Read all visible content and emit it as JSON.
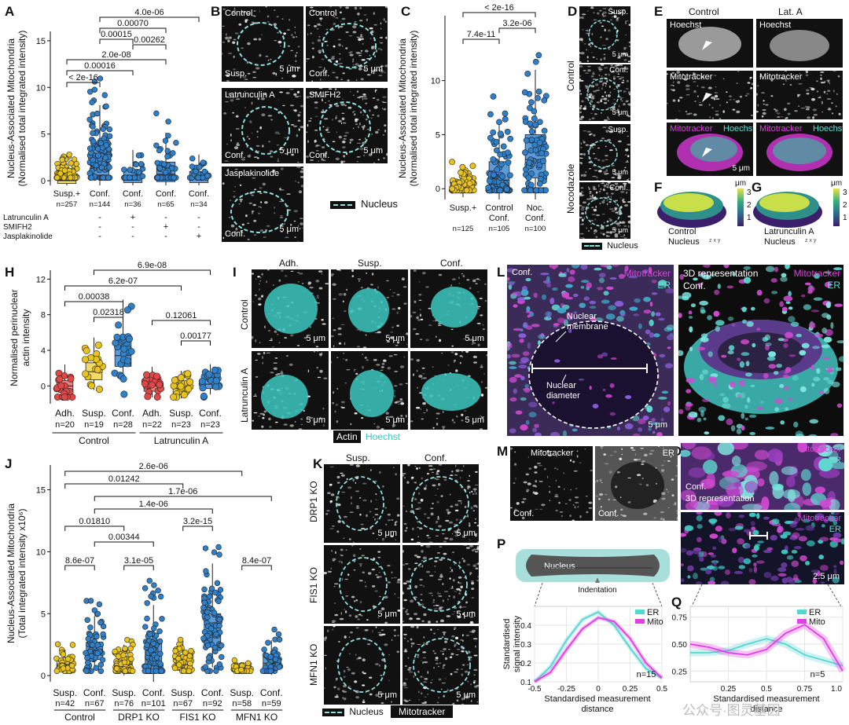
{
  "panels": {
    "A": {
      "label": "A",
      "ylabel": "Nucleus-Associated Mitochondria",
      "ylabel2": "(Normalised total integrated intensity)",
      "groups": [
        "Susp.+",
        "Conf.",
        "Conf.",
        "Conf.",
        "Conf."
      ],
      "ns": [
        "n=257",
        "n=144",
        "n=36",
        "n=65",
        "n=34"
      ],
      "treatments": [
        {
          "name": "Latrunculin A",
          "marks": [
            "",
            "-",
            "+",
            "-",
            "-"
          ]
        },
        {
          "name": "SMIFH2",
          "marks": [
            "",
            "-",
            "-",
            "+",
            "-"
          ]
        },
        {
          "name": "Jasplakinolide",
          "marks": [
            "",
            "-",
            "-",
            "-",
            "+"
          ]
        }
      ],
      "pvals": [
        "4.0e-06",
        "0.00070",
        "0.00015",
        "0.00262",
        "2.0e-08",
        "0.00016",
        "< 2e-16"
      ]
    },
    "B": {
      "label": "B",
      "tiles": [
        {
          "top": "Control",
          "bottom": "Susp.",
          "scale": "5 μm"
        },
        {
          "top": "Control",
          "bottom": "Conf.",
          "scale": "5 μm"
        },
        {
          "top": "Latrunculin A",
          "bottom": "Conf.",
          "scale": "5 μm"
        },
        {
          "top": "SMIFH2",
          "bottom": "Conf.",
          "scale": "5 μm"
        },
        {
          "top": "Jasplakinolide",
          "bottom": "Conf.",
          "scale": "5 μm"
        }
      ],
      "legend": "Nucleus"
    },
    "C": {
      "label": "C",
      "ylabel": "Nucleus-Associated Mitochondria",
      "ylabel2": "(Normalised total integrated intensity)",
      "groups": [
        "Susp.+",
        "Control\nConf.",
        "Noc.\nConf."
      ],
      "ns": [
        "n=125",
        "n=105",
        "n=100"
      ],
      "pvals": [
        "< 2e-16",
        "3.2e-06",
        "7.4e-11"
      ]
    },
    "D": {
      "label": "D",
      "rows": [
        "Control",
        "Nocodazole"
      ],
      "tiles": [
        "Susp.",
        "Conf.",
        "Susp.",
        "Conf."
      ],
      "scale": "5 μm",
      "legend": "Nucleus"
    },
    "E": {
      "label": "E",
      "cols": [
        "Control",
        "Lat. A"
      ],
      "hoechst": "Hoechst",
      "mitotracker": "Mitotracker",
      "scale": "5 μm"
    },
    "F": {
      "label": "F",
      "title": "Control",
      "title2": "Nucleus",
      "unit": "μm",
      "ticks": [
        "3",
        "2",
        "1"
      ]
    },
    "G": {
      "label": "G",
      "title": "Latrunculin A",
      "title2": "Nucleus",
      "unit": "μm",
      "ticks": [
        "3",
        "2",
        "1"
      ]
    },
    "H": {
      "label": "H",
      "ylabel": "Normalised perinuclear",
      "ylabel2": "actin intensity",
      "groups": [
        "Adh.",
        "Susp.",
        "Conf.",
        "Adh.",
        "Susp.",
        "Conf."
      ],
      "ns": [
        "n=20",
        "n=19",
        "n=28",
        "n=22",
        "n=23",
        "n=23"
      ],
      "conditions": [
        "Control",
        "Latrunculin A"
      ],
      "pvals": [
        "6.9e-08",
        "6.2e-07",
        "0.00038",
        "0.02318",
        "0.12061",
        "0.00177"
      ]
    },
    "I": {
      "label": "I",
      "cols": [
        "Adh.",
        "Susp.",
        "Conf."
      ],
      "rows": [
        "Control",
        "Latrunculin A"
      ],
      "scale": "5 μm",
      "legend1": "Actin",
      "legend2": "Hoechst"
    },
    "J": {
      "label": "J",
      "ylabel": "Nucleus-Associated Mitochondria",
      "ylabel2": "(Total integrated intensity x10⁶)",
      "groups": [
        "Susp.",
        "Conf.",
        "Susp.",
        "Conf.",
        "Susp.",
        "Conf.",
        "Susp.",
        "Conf."
      ],
      "ns": [
        "n=42",
        "n=67",
        "n=76",
        "n=101",
        "n=67",
        "n=92",
        "n=58",
        "n=59"
      ],
      "conditions": [
        "Control",
        "DRP1 KO",
        "FIS1 KO",
        "MFN1 KO"
      ],
      "pvals": [
        "2.6e-06",
        "0.01242",
        "1.7e-06",
        "1.4e-06",
        "0.01810",
        "3.2e-15",
        "0.00344",
        "8.6e-07",
        "3.1e-05",
        "8.4e-07"
      ]
    },
    "K": {
      "label": "K",
      "cols": [
        "Susp.",
        "Conf."
      ],
      "rows": [
        "DRP1 KO",
        "FIS1 KO",
        "MFN1 KO"
      ],
      "scale": "5 μm",
      "legend1": "Nucleus",
      "legend2": "Mitotracker"
    },
    "L": {
      "label": "L",
      "tl": "Conf.",
      "mito": "Mitotracker",
      "er": "ER",
      "membrane": "Nuclear\nmembrane",
      "diameter": "Nuclear\ndiameter",
      "scale": "5 μm",
      "right_title": "3D representation",
      "right_sub": "Conf."
    },
    "M": {
      "label": "M",
      "name": "Mitotracker",
      "sub": "Conf."
    },
    "N": {
      "label": "N",
      "name": "ER",
      "sub": "Conf."
    },
    "O": {
      "label": "O",
      "mito": "Mitotracker",
      "er": "ER",
      "top_sub": "Conf.",
      "top_sub2": "3D representation",
      "scale": "2.5 μm"
    },
    "P": {
      "label": "P",
      "nucleus": "Nucleus",
      "indentation": "Indentation",
      "ylabel": "Standardised",
      "ylabel2": "signal intensity",
      "xlabel": "Standardised measurement",
      "xlabel2": "distance",
      "n": "n=15",
      "legend": [
        "ER",
        "Mito"
      ],
      "xticks": [
        "-0.5",
        "-0.25",
        "0",
        "0.25",
        "0.5"
      ],
      "yticks": [
        "0.4",
        "0.3",
        "0.2",
        "0.1"
      ]
    },
    "Q": {
      "label": "Q",
      "xlabel": "Standardised measurement",
      "xlabel2": "distance",
      "n": "n=5",
      "legend": [
        "ER",
        "Mito"
      ],
      "xticks": [
        "0.25",
        "0.5",
        "0.75",
        "1.0"
      ],
      "yticks": [
        "0.75",
        "0.50",
        "0.25"
      ]
    }
  },
  "watermark": "公众号·图灵基因",
  "chart_data": [
    {
      "panel": "A",
      "type": "box",
      "ylim": [
        -0.5,
        16
      ],
      "yticks": [
        0,
        5,
        10,
        15
      ],
      "categories": [
        "Susp.+",
        "Conf.",
        "Conf.",
        "Conf.",
        "Conf."
      ],
      "series": [
        {
          "values_median": [
            0.0,
            1.9,
            0.3,
            0.7,
            0.3
          ],
          "q1": [
            -0.3,
            0.6,
            -0.2,
            -0.1,
            -0.2
          ],
          "q3": [
            0.6,
            3.6,
            1.2,
            2.0,
            1.0
          ]
        }
      ]
    },
    {
      "panel": "C",
      "type": "box",
      "ylim": [
        -1,
        16
      ],
      "yticks": [
        0,
        5,
        10
      ],
      "categories": [
        "Susp.+",
        "Control Conf.",
        "Noc. Conf."
      ],
      "series": [
        {
          "values_median": [
            0.0,
            0.8,
            2.7
          ],
          "q1": [
            -0.3,
            0.0,
            1.0
          ],
          "q3": [
            0.5,
            2.5,
            5.0
          ]
        }
      ]
    },
    {
      "panel": "H",
      "type": "box",
      "ylim": [
        -2,
        13
      ],
      "yticks": [
        0,
        4,
        8,
        12
      ],
      "categories": [
        "Adh.",
        "Susp.",
        "Conf.",
        "Adh.",
        "Susp.",
        "Conf."
      ],
      "series": [
        {
          "values_median": [
            0.0,
            1.6,
            3.4,
            0.0,
            -0.3,
            0.2
          ],
          "q1": [
            -0.6,
            0.7,
            2.2,
            -0.6,
            -0.8,
            -0.3
          ],
          "q3": [
            0.6,
            2.6,
            5.2,
            0.5,
            0.2,
            0.8
          ]
        }
      ]
    },
    {
      "panel": "J",
      "type": "box",
      "ylim": [
        -0.5,
        17
      ],
      "yticks": [
        0,
        5,
        10,
        15
      ],
      "categories": [
        "Susp.",
        "Conf.",
        "Susp.",
        "Conf.",
        "Susp.",
        "Conf.",
        "Susp.",
        "Conf."
      ],
      "series": [
        {
          "values_median": [
            0.9,
            2.0,
            0.9,
            1.6,
            1.2,
            3.5,
            0.5,
            1.0
          ],
          "q1": [
            0.6,
            1.3,
            0.5,
            0.7,
            0.8,
            2.3,
            0.3,
            0.6
          ],
          "q3": [
            1.2,
            2.7,
            1.3,
            2.7,
            1.6,
            5.0,
            0.6,
            1.5
          ]
        }
      ]
    },
    {
      "panel": "P",
      "type": "line",
      "xlim": [
        -0.5,
        0.5
      ],
      "ylim": [
        0.1,
        0.5
      ],
      "x": [
        -0.5,
        -0.375,
        -0.25,
        -0.125,
        0,
        0.125,
        0.25,
        0.375,
        0.5
      ],
      "series": [
        {
          "name": "ER",
          "values": [
            0.1,
            0.18,
            0.32,
            0.43,
            0.47,
            0.4,
            0.28,
            0.17,
            0.12
          ]
        },
        {
          "name": "Mito",
          "values": [
            0.1,
            0.15,
            0.27,
            0.38,
            0.44,
            0.42,
            0.33,
            0.2,
            0.12
          ]
        }
      ]
    },
    {
      "panel": "Q",
      "type": "line",
      "xlim": [
        0,
        1.0
      ],
      "ylim": [
        0.15,
        0.85
      ],
      "x": [
        0,
        0.125,
        0.25,
        0.375,
        0.5,
        0.625,
        0.75,
        0.875,
        1.0
      ],
      "series": [
        {
          "name": "ER",
          "values": [
            0.42,
            0.42,
            0.44,
            0.5,
            0.55,
            0.5,
            0.4,
            0.35,
            0.3
          ]
        },
        {
          "name": "Mito",
          "values": [
            0.5,
            0.47,
            0.42,
            0.4,
            0.45,
            0.6,
            0.68,
            0.55,
            0.25
          ]
        }
      ]
    }
  ]
}
